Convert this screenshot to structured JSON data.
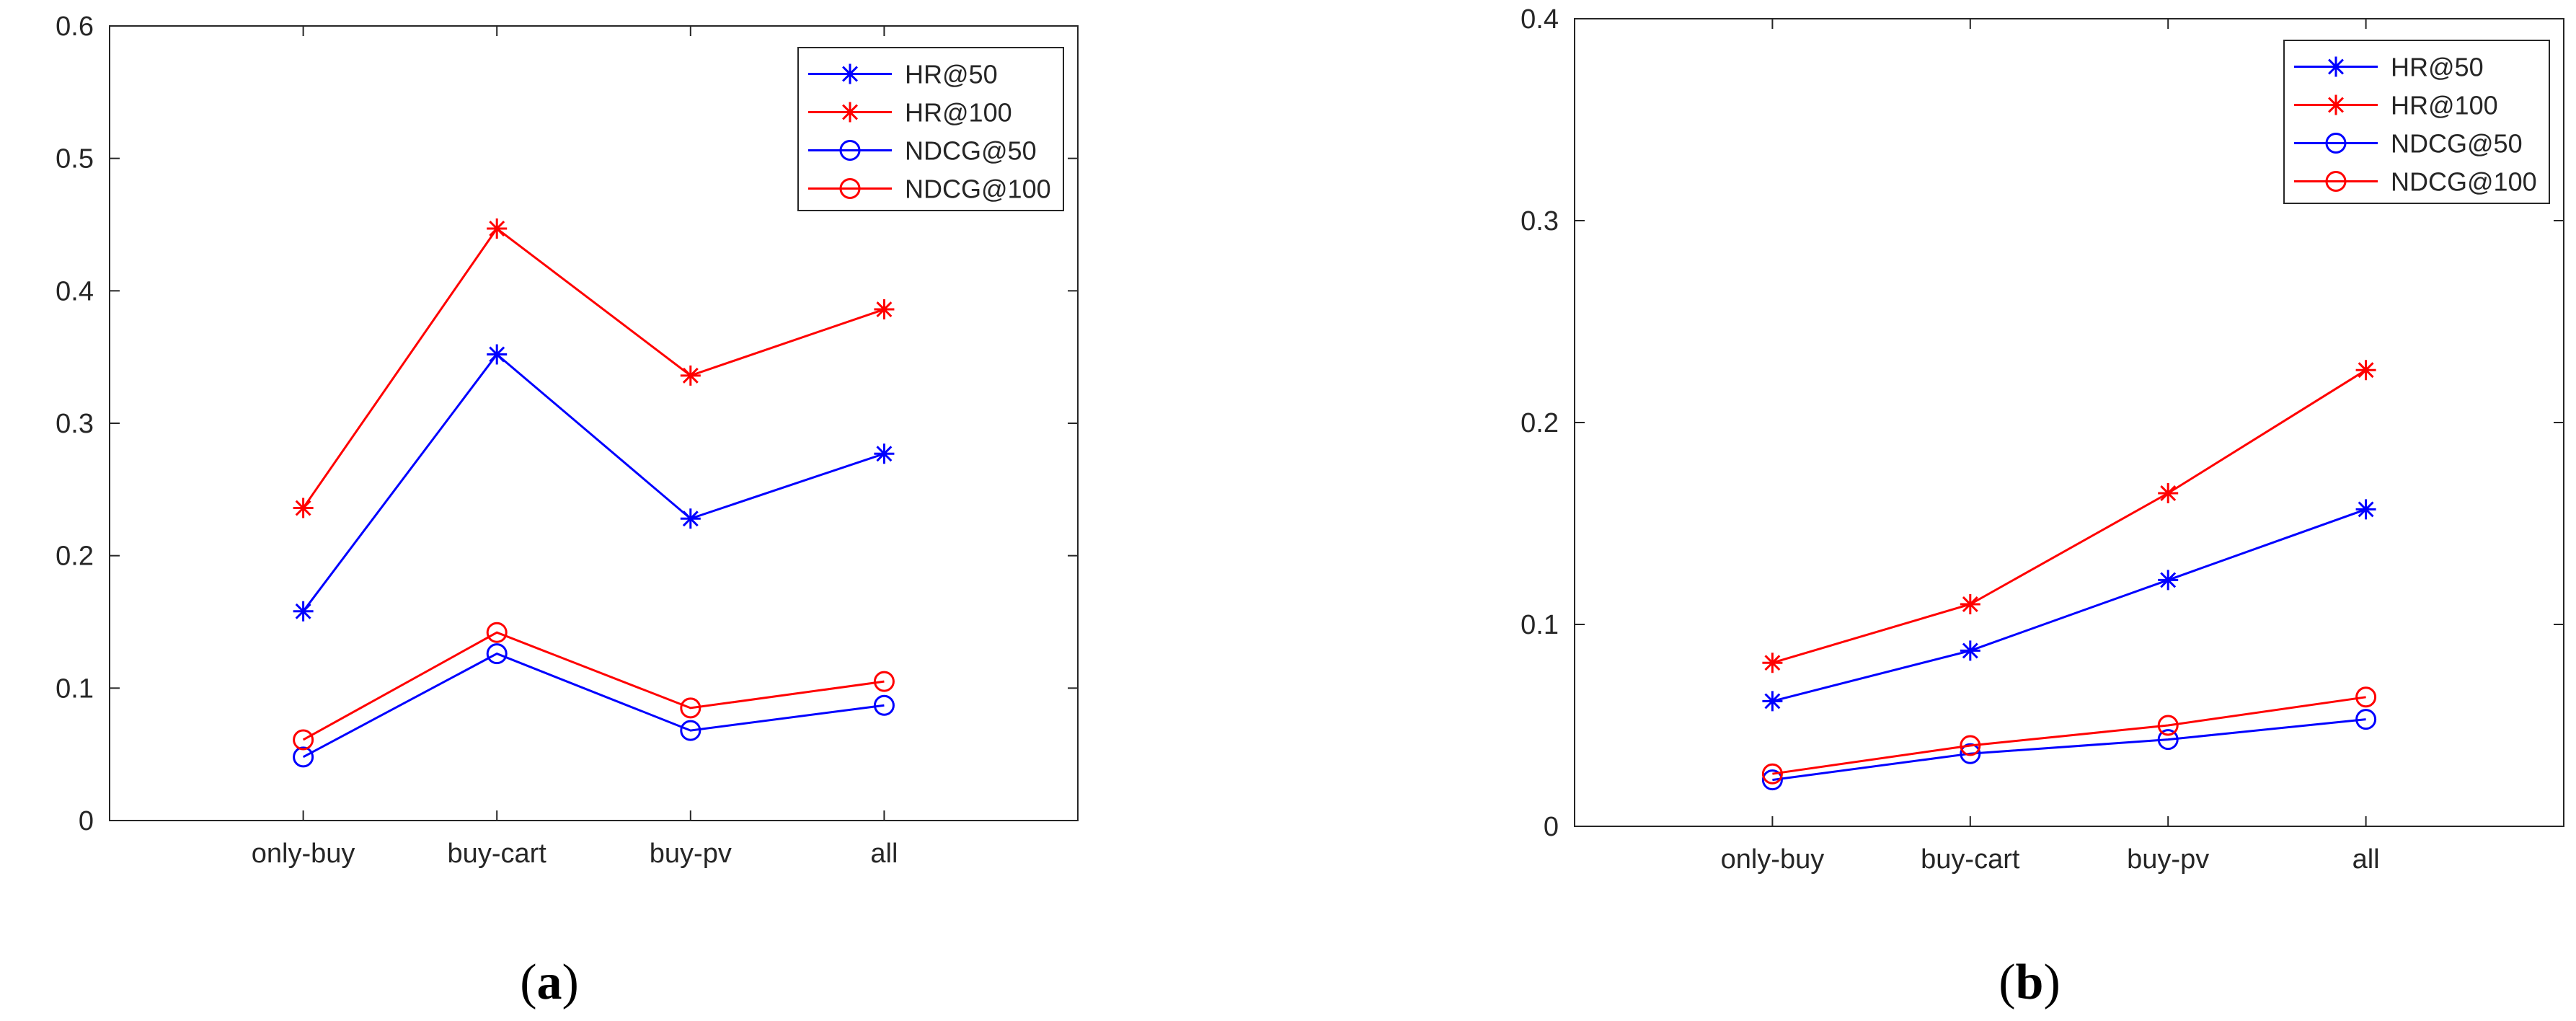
{
  "chart_data": [
    {
      "type": "line",
      "panel_label": "a",
      "categories": [
        "only-buy",
        "buy-cart",
        "buy-pv",
        "all"
      ],
      "ylim": [
        0,
        0.6
      ],
      "yticks": [
        0,
        0.1,
        0.2,
        0.3,
        0.4,
        0.5,
        0.6
      ],
      "ytick_labels": [
        "0",
        "0.1",
        "0.2",
        "0.3",
        "0.4",
        "0.5",
        "0.6"
      ],
      "title": "",
      "xlabel": "",
      "ylabel": "",
      "legend_position": "top-right",
      "grid": false,
      "series": [
        {
          "name": "HR@50",
          "color": "#0000ff",
          "marker": "star",
          "values": [
            0.158,
            0.352,
            0.228,
            0.277
          ]
        },
        {
          "name": "HR@100",
          "color": "#ff0000",
          "marker": "star",
          "values": [
            0.236,
            0.447,
            0.336,
            0.386
          ]
        },
        {
          "name": "NDCG@50",
          "color": "#0000ff",
          "marker": "circle",
          "values": [
            0.048,
            0.126,
            0.068,
            0.087
          ]
        },
        {
          "name": "NDCG@100",
          "color": "#ff0000",
          "marker": "circle",
          "values": [
            0.061,
            0.142,
            0.085,
            0.105
          ]
        }
      ]
    },
    {
      "type": "line",
      "panel_label": "b",
      "categories": [
        "only-buy",
        "buy-cart",
        "buy-pv",
        "all"
      ],
      "ylim": [
        0,
        0.4
      ],
      "yticks": [
        0,
        0.1,
        0.2,
        0.3,
        0.4
      ],
      "ytick_labels": [
        "0",
        "0.1",
        "0.2",
        "0.3",
        "0.4"
      ],
      "title": "",
      "xlabel": "",
      "ylabel": "",
      "legend_position": "top-right",
      "grid": false,
      "series": [
        {
          "name": "HR@50",
          "color": "#0000ff",
          "marker": "star",
          "values": [
            0.062,
            0.087,
            0.122,
            0.157
          ]
        },
        {
          "name": "HR@100",
          "color": "#ff0000",
          "marker": "star",
          "values": [
            0.081,
            0.11,
            0.165,
            0.226
          ]
        },
        {
          "name": "NDCG@50",
          "color": "#0000ff",
          "marker": "circle",
          "values": [
            0.023,
            0.036,
            0.043,
            0.053
          ]
        },
        {
          "name": "NDCG@100",
          "color": "#ff0000",
          "marker": "circle",
          "values": [
            0.026,
            0.04,
            0.05,
            0.064
          ]
        }
      ]
    }
  ]
}
